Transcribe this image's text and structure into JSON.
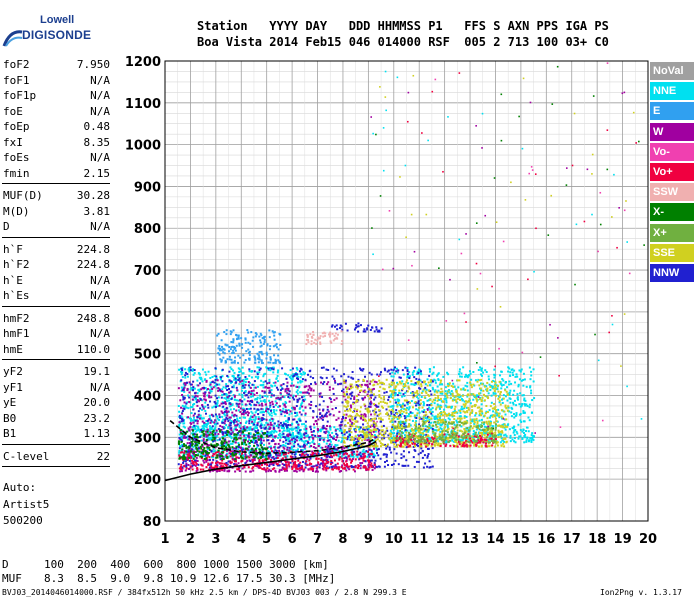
{
  "logo": {
    "top": "Lowell",
    "bottom": "DIGISONDE"
  },
  "header": {
    "line1": "Station   YYYY DAY   DDD HHMMSS P1   FFS S AXN PPS IGA PS",
    "line2": "Boa Vista 2014 Feb15 046 014000 RSF  005 2 713 100 03+ C0"
  },
  "params": [
    {
      "name": "foF2",
      "value": "7.950"
    },
    {
      "name": "foF1",
      "value": "N/A"
    },
    {
      "name": "foF1p",
      "value": "N/A"
    },
    {
      "name": "foE",
      "value": "N/A"
    },
    {
      "name": "foEp",
      "value": "0.48"
    },
    {
      "name": "fxI",
      "value": "8.35"
    },
    {
      "name": "foEs",
      "value": "N/A"
    },
    {
      "name": "fmin",
      "value": "2.15"
    },
    {
      "name": "MUF(D)",
      "value": "30.28"
    },
    {
      "name": "M(D)",
      "value": "3.81"
    },
    {
      "name": "D",
      "value": "N/A"
    },
    {
      "name": "h`F",
      "value": "224.8"
    },
    {
      "name": "h`F2",
      "value": "224.8"
    },
    {
      "name": "h`E",
      "value": "N/A"
    },
    {
      "name": "h`Es",
      "value": "N/A"
    },
    {
      "name": "hmF2",
      "value": "248.8"
    },
    {
      "name": "hmF1",
      "value": "N/A"
    },
    {
      "name": "hmE",
      "value": "110.0"
    },
    {
      "name": "yF2",
      "value": "19.1"
    },
    {
      "name": "yF1",
      "value": "N/A"
    },
    {
      "name": "yE",
      "value": "20.0"
    },
    {
      "name": "B0",
      "value": "23.2"
    },
    {
      "name": "B1",
      "value": "1.13"
    },
    {
      "name": "C-level",
      "value": "22"
    }
  ],
  "notes": [
    "Auto:",
    "Artist5",
    "500200"
  ],
  "legend": [
    {
      "label": "NoVal",
      "color": "#a0a0a0"
    },
    {
      "label": "NNE",
      "color": "#00e0f0"
    },
    {
      "label": "E",
      "color": "#30a0f0"
    },
    {
      "label": "W",
      "color": "#a000a0"
    },
    {
      "label": "Vo-",
      "color": "#f040b0"
    },
    {
      "label": "Vo+",
      "color": "#f00040"
    },
    {
      "label": "SSW",
      "color": "#f0b0b0"
    },
    {
      "label": "X-",
      "color": "#008000"
    },
    {
      "label": "X+",
      "color": "#70b040"
    },
    {
      "label": "SSE",
      "color": "#d0d020"
    },
    {
      "label": "NNW",
      "color": "#2020d0"
    }
  ],
  "bottom": {
    "d_label": "D",
    "muf_label": "MUF",
    "d_values": "100  200  400  600  800 1000 1500 3000 [km]",
    "muf_values": "8.3  8.5  9.0  9.8 10.9 12.6 17.5 30.3 [MHz]"
  },
  "footer": {
    "left": "BVJ03_2014046014000.RSF / 384fx512h 50 kHz 2.5 km / DPS-4D BVJ03 003 / 2.8 N 299.3 E",
    "right": "Ion2Png v. 1.3.17"
  },
  "chart_data": {
    "type": "scatter",
    "title": "",
    "xlabel": "",
    "ylabel": "",
    "xlim": [
      1,
      20
    ],
    "ylim": [
      80,
      1200
    ],
    "x_ticks": [
      1,
      2,
      3,
      4,
      5,
      6,
      7,
      8,
      9,
      10,
      11,
      12,
      13,
      14,
      15,
      16,
      17,
      18,
      19,
      20
    ],
    "y_ticks": [
      80,
      200,
      300,
      400,
      500,
      600,
      700,
      800,
      900,
      1000,
      1100,
      1200
    ],
    "grid": true,
    "legend_position": "right",
    "clusters": [
      {
        "series": "NNE",
        "x": [
          1.5,
          9.3
        ],
        "y": [
          255,
          330
        ]
      },
      {
        "series": "NNE",
        "x": [
          9.8,
          15.5
        ],
        "y": [
          290,
          470
        ]
      },
      {
        "series": "NNE",
        "x": [
          1.5,
          6.5
        ],
        "y": [
          300,
          470
        ]
      },
      {
        "series": "E",
        "x": [
          3,
          5.5
        ],
        "y": [
          480,
          560
        ]
      },
      {
        "series": "W",
        "x": [
          1.5,
          9.3
        ],
        "y": [
          220,
          440
        ]
      },
      {
        "series": "NNW",
        "x": [
          1.5,
          11.5
        ],
        "y": [
          230,
          470
        ]
      },
      {
        "series": "NNW",
        "x": [
          7.5,
          9.5
        ],
        "y": [
          555,
          575
        ]
      },
      {
        "series": "SSE",
        "x": [
          8,
          14.5
        ],
        "y": [
          280,
          440
        ]
      },
      {
        "series": "Vo+",
        "x": [
          1.5,
          9.3
        ],
        "y": [
          225,
          270
        ]
      },
      {
        "series": "Vo+",
        "x": [
          10,
          14
        ],
        "y": [
          280,
          310
        ]
      },
      {
        "series": "SSW",
        "x": [
          6.5,
          8
        ],
        "y": [
          525,
          560
        ]
      },
      {
        "series": "X-",
        "x": [
          1.5,
          5
        ],
        "y": [
          250,
          320
        ]
      },
      {
        "series": "X+",
        "x": [
          10,
          14
        ],
        "y": [
          290,
          340
        ]
      }
    ],
    "curves": [
      {
        "name": "profile",
        "x": [
          1.0,
          2,
          3,
          4,
          5,
          6,
          7,
          8,
          9,
          9.3
        ],
        "y": [
          196,
          212,
          224,
          232,
          240,
          248,
          256,
          266,
          280,
          290
        ]
      },
      {
        "name": "trace",
        "x": [
          1.2,
          2,
          3,
          4,
          5,
          6,
          7,
          8,
          9,
          9.3
        ],
        "y": [
          340,
          300,
          275,
          265,
          262,
          264,
          268,
          276,
          288,
          298
        ]
      }
    ]
  }
}
